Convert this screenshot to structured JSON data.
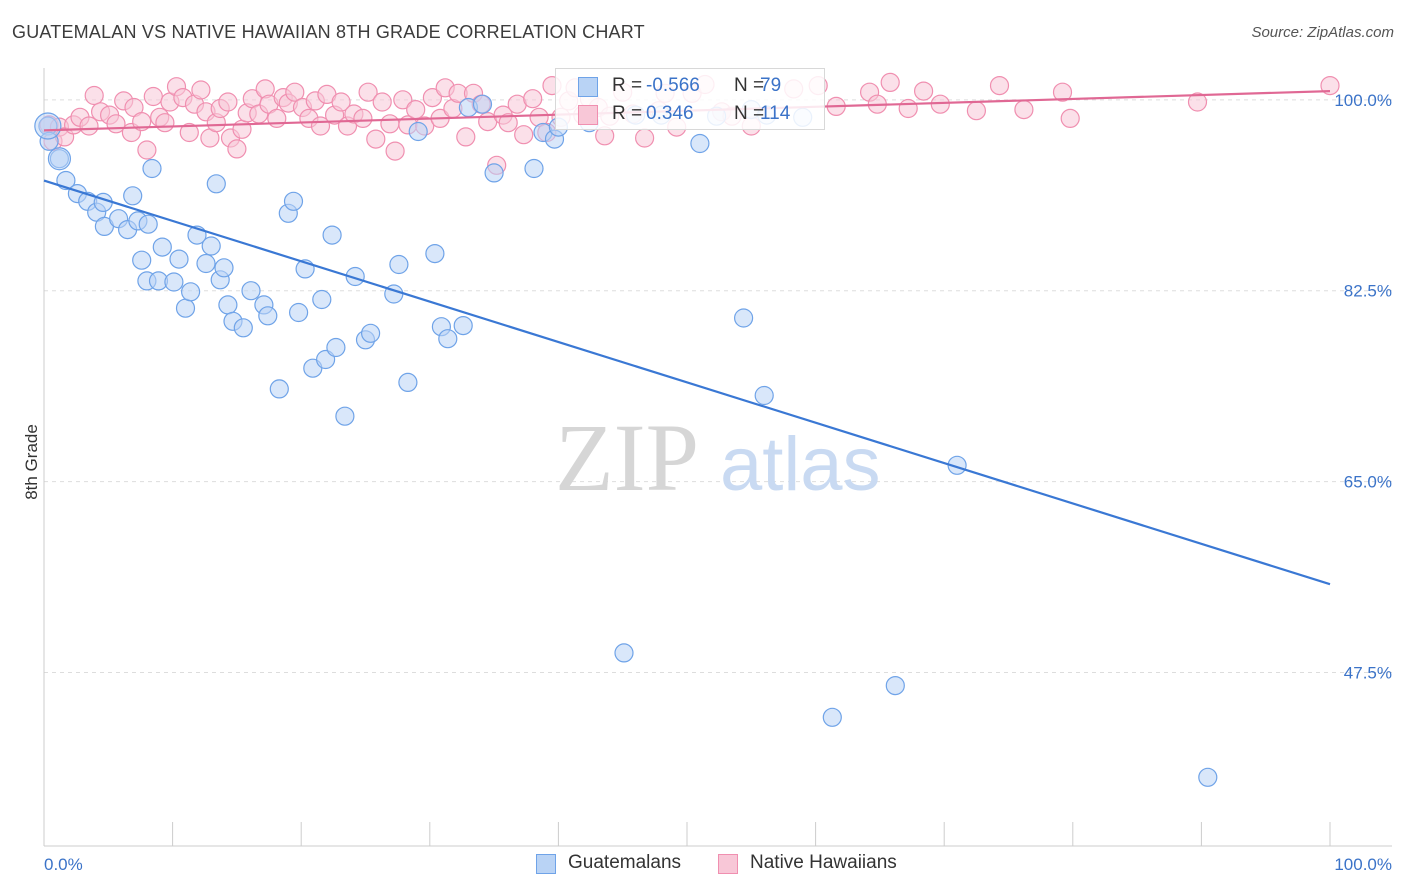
{
  "title": "GUATEMALAN VS NATIVE HAWAIIAN 8TH GRADE CORRELATION CHART",
  "source": "Source: ZipAtlas.com",
  "watermark": {
    "zip": "ZIP",
    "atlas": "atlas"
  },
  "legend_top": {
    "rows": [
      {
        "r_label": "R =",
        "r_value": "-0.566",
        "n_label": "N =",
        "n_value": "79",
        "color": "#6fa3e8",
        "fill": "#b9d3f5"
      },
      {
        "r_label": "R =",
        "r_value": "0.346",
        "n_label": "N =",
        "n_value": "114",
        "color": "#f08fb0",
        "fill": "#f8c7d7"
      }
    ]
  },
  "legend_bottom": [
    {
      "label": "Guatemalans",
      "color": "#6fa3e8",
      "fill": "#b9d3f5"
    },
    {
      "label": "Native Hawaiians",
      "color": "#f08fb0",
      "fill": "#f8c7d7"
    }
  ],
  "chart_data": {
    "type": "scatter",
    "title": "GUATEMALAN VS NATIVE HAWAIIAN 8TH GRADE CORRELATION CHART",
    "xlabel": "",
    "ylabel": "8th Grade",
    "xlim": [
      0,
      100
    ],
    "ylim": [
      31.6,
      102
    ],
    "x_tick_labels": [
      "0.0%",
      "100.0%"
    ],
    "y_ticks": [
      47.5,
      65.0,
      82.5,
      100.0
    ],
    "y_tick_labels": [
      "47.5%",
      "65.0%",
      "82.5%",
      "100.0%"
    ],
    "grid": "horizontal dashed",
    "legend": "bottom-center",
    "series": [
      {
        "name": "Guatemalans",
        "color": "#3a78d4",
        "marker_fill": "#b9d3f5",
        "marker_stroke": "#6fa3e8",
        "trend": {
          "x": [
            0,
            100
          ],
          "y": [
            92.6,
            55.6
          ]
        },
        "points": [
          [
            0.3,
            97.6
          ],
          [
            0.4,
            96.2
          ],
          [
            1.2,
            94.6
          ],
          [
            1.7,
            92.6
          ],
          [
            2.6,
            91.4
          ],
          [
            3.4,
            90.7
          ],
          [
            4.1,
            89.7
          ],
          [
            4.6,
            90.6
          ],
          [
            4.7,
            88.4
          ],
          [
            5.8,
            89.1
          ],
          [
            6.5,
            88.1
          ],
          [
            6.9,
            91.2
          ],
          [
            7.3,
            88.9
          ],
          [
            8.1,
            88.6
          ],
          [
            8.4,
            93.7
          ],
          [
            7.6,
            85.3
          ],
          [
            8.0,
            83.4
          ],
          [
            8.9,
            83.4
          ],
          [
            9.2,
            86.5
          ],
          [
            10.1,
            83.3
          ],
          [
            10.5,
            85.4
          ],
          [
            11.0,
            80.9
          ],
          [
            11.4,
            82.4
          ],
          [
            11.9,
            87.6
          ],
          [
            12.6,
            85.0
          ],
          [
            13.0,
            86.6
          ],
          [
            13.4,
            92.3
          ],
          [
            13.7,
            83.5
          ],
          [
            14.0,
            84.6
          ],
          [
            14.3,
            81.2
          ],
          [
            14.7,
            79.7
          ],
          [
            15.5,
            79.1
          ],
          [
            16.1,
            82.5
          ],
          [
            17.1,
            81.2
          ],
          [
            17.4,
            80.2
          ],
          [
            18.3,
            73.5
          ],
          [
            19.0,
            89.6
          ],
          [
            19.4,
            90.7
          ],
          [
            19.8,
            80.5
          ],
          [
            20.3,
            84.5
          ],
          [
            20.9,
            75.4
          ],
          [
            21.6,
            81.7
          ],
          [
            21.9,
            76.2
          ],
          [
            22.4,
            87.6
          ],
          [
            22.7,
            77.3
          ],
          [
            23.4,
            71.0
          ],
          [
            24.2,
            83.8
          ],
          [
            25.0,
            78.0
          ],
          [
            25.4,
            78.6
          ],
          [
            27.2,
            82.2
          ],
          [
            27.6,
            84.9
          ],
          [
            28.3,
            74.1
          ],
          [
            29.1,
            97.1
          ],
          [
            30.4,
            85.9
          ],
          [
            30.9,
            79.2
          ],
          [
            31.4,
            78.1
          ],
          [
            32.6,
            79.3
          ],
          [
            33.0,
            99.3
          ],
          [
            34.1,
            99.6
          ],
          [
            35.0,
            93.3
          ],
          [
            38.1,
            93.7
          ],
          [
            38.8,
            97.0
          ],
          [
            39.7,
            96.4
          ],
          [
            40.0,
            97.5
          ],
          [
            42.4,
            97.9
          ],
          [
            45.1,
            49.3
          ],
          [
            46.0,
            98.6
          ],
          [
            48.0,
            98.6
          ],
          [
            51.0,
            96.0
          ],
          [
            52.3,
            98.5
          ],
          [
            54.4,
            80.0
          ],
          [
            55.0,
            99.1
          ],
          [
            56.0,
            72.9
          ],
          [
            56.2,
            98.6
          ],
          [
            59.0,
            98.4
          ],
          [
            61.3,
            43.4
          ],
          [
            66.2,
            46.3
          ],
          [
            71.0,
            66.5
          ],
          [
            90.5,
            37.9
          ]
        ]
      },
      {
        "name": "Native Hawaiians",
        "color": "#e06894",
        "marker_fill": "#f8c7d7",
        "marker_stroke": "#f08fb0",
        "trend": {
          "x": [
            0,
            100
          ],
          "y": [
            97.2,
            100.8
          ]
        },
        "points": [
          [
            0.4,
            97.7
          ],
          [
            0.7,
            96.2
          ],
          [
            1.2,
            97.5
          ],
          [
            1.6,
            96.6
          ],
          [
            2.3,
            97.7
          ],
          [
            2.8,
            98.4
          ],
          [
            3.5,
            97.6
          ],
          [
            3.9,
            100.4
          ],
          [
            4.4,
            98.9
          ],
          [
            5.1,
            98.6
          ],
          [
            5.6,
            97.8
          ],
          [
            6.2,
            99.9
          ],
          [
            6.8,
            97.0
          ],
          [
            7.0,
            99.3
          ],
          [
            7.6,
            98.0
          ],
          [
            8.0,
            95.4
          ],
          [
            8.5,
            100.3
          ],
          [
            9.0,
            98.4
          ],
          [
            9.4,
            97.9
          ],
          [
            9.8,
            99.8
          ],
          [
            10.3,
            101.2
          ],
          [
            10.8,
            100.2
          ],
          [
            11.3,
            97.0
          ],
          [
            11.7,
            99.6
          ],
          [
            12.2,
            100.9
          ],
          [
            12.6,
            98.9
          ],
          [
            12.9,
            96.5
          ],
          [
            13.4,
            97.9
          ],
          [
            13.7,
            99.2
          ],
          [
            14.3,
            99.8
          ],
          [
            14.5,
            96.5
          ],
          [
            15.0,
            95.5
          ],
          [
            15.4,
            97.3
          ],
          [
            15.8,
            98.8
          ],
          [
            16.2,
            100.1
          ],
          [
            16.7,
            98.7
          ],
          [
            17.2,
            101.0
          ],
          [
            17.5,
            99.6
          ],
          [
            18.1,
            98.3
          ],
          [
            18.6,
            100.2
          ],
          [
            19.0,
            99.7
          ],
          [
            19.5,
            100.7
          ],
          [
            20.1,
            99.3
          ],
          [
            20.6,
            98.3
          ],
          [
            21.1,
            99.9
          ],
          [
            21.5,
            97.6
          ],
          [
            22.0,
            100.5
          ],
          [
            22.6,
            98.6
          ],
          [
            23.1,
            99.8
          ],
          [
            23.6,
            97.6
          ],
          [
            24.1,
            98.7
          ],
          [
            24.8,
            98.3
          ],
          [
            25.2,
            100.7
          ],
          [
            25.8,
            96.4
          ],
          [
            26.3,
            99.8
          ],
          [
            26.9,
            97.8
          ],
          [
            27.3,
            95.3
          ],
          [
            27.9,
            100.0
          ],
          [
            28.3,
            97.7
          ],
          [
            28.9,
            99.1
          ],
          [
            29.6,
            97.6
          ],
          [
            30.2,
            100.2
          ],
          [
            30.8,
            98.3
          ],
          [
            31.2,
            101.1
          ],
          [
            31.8,
            99.2
          ],
          [
            32.2,
            100.6
          ],
          [
            32.8,
            96.6
          ],
          [
            33.4,
            100.6
          ],
          [
            34.0,
            99.6
          ],
          [
            34.5,
            98.0
          ],
          [
            35.2,
            94.0
          ],
          [
            35.7,
            98.6
          ],
          [
            36.1,
            97.9
          ],
          [
            36.8,
            99.6
          ],
          [
            37.3,
            96.8
          ],
          [
            38.0,
            100.1
          ],
          [
            38.5,
            98.4
          ],
          [
            39.1,
            97.0
          ],
          [
            39.5,
            101.3
          ],
          [
            40.2,
            98.4
          ],
          [
            40.8,
            99.9
          ],
          [
            41.3,
            101.1
          ],
          [
            41.9,
            98.6
          ],
          [
            42.4,
            100.1
          ],
          [
            43.1,
            99.3
          ],
          [
            43.6,
            96.7
          ],
          [
            44.0,
            98.5
          ],
          [
            45.0,
            100.7
          ],
          [
            45.8,
            98.7
          ],
          [
            46.7,
            96.5
          ],
          [
            47.8,
            99.0
          ],
          [
            48.3,
            100.6
          ],
          [
            49.2,
            97.5
          ],
          [
            50.4,
            100.6
          ],
          [
            51.4,
            101.4
          ],
          [
            52.7,
            98.9
          ],
          [
            53.5,
            98.5
          ],
          [
            55.0,
            97.6
          ],
          [
            58.3,
            101.0
          ],
          [
            60.2,
            101.3
          ],
          [
            61.6,
            99.4
          ],
          [
            64.2,
            100.7
          ],
          [
            64.8,
            99.6
          ],
          [
            65.8,
            101.6
          ],
          [
            67.2,
            99.2
          ],
          [
            68.4,
            100.8
          ],
          [
            69.7,
            99.6
          ],
          [
            72.5,
            99.0
          ],
          [
            74.3,
            101.3
          ],
          [
            76.2,
            99.1
          ],
          [
            79.2,
            100.7
          ],
          [
            79.8,
            98.3
          ],
          [
            89.7,
            99.8
          ],
          [
            100.0,
            101.3
          ]
        ]
      }
    ]
  }
}
